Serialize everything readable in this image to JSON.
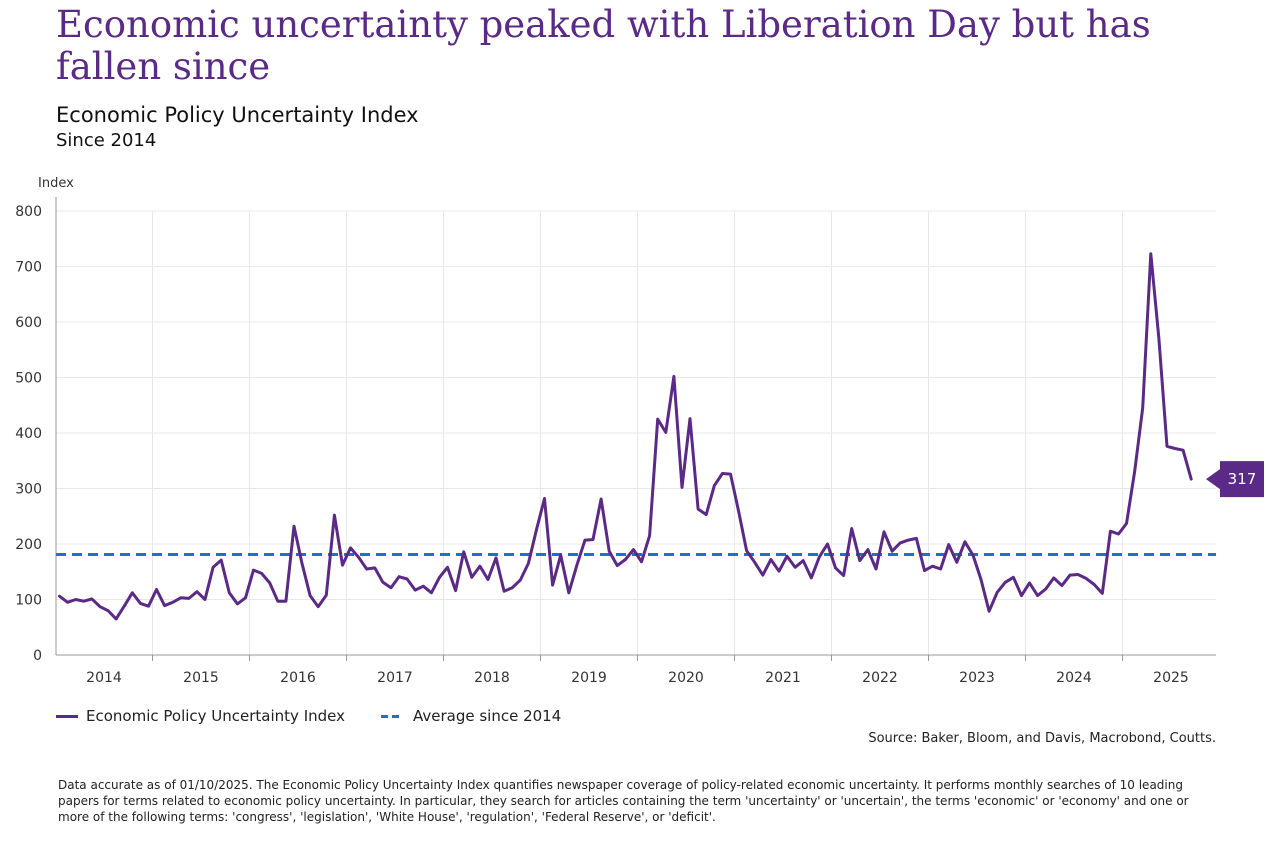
{
  "title": "Economic uncertainty peaked with Liberation Day but has fallen since",
  "subtitle": "Economic Policy Uncertainty Index",
  "subtitle2": "Since 2014",
  "source": "Source: Baker, Bloom, and Davis, Macrobond, Coutts.",
  "footnote": "Data accurate as of 01/10/2025. The Economic Policy Uncertainty Index quantifies newspaper coverage of policy-related economic uncertainty. It performs monthly searches of 10 leading papers for terms related to economic policy uncertainty. In particular, they search for articles containing the term 'uncertainty' or 'uncertain', the terms 'economic' or 'economy' and one or more of the following terms: 'congress', 'legislation', 'White House', 'regulation', 'Federal Reserve', or 'deficit'.",
  "colors": {
    "series": "#5b2a86",
    "average": "#1f6fd1",
    "title": "#5b2a86",
    "grid": "#e8e8e8"
  },
  "chart_data": {
    "type": "line",
    "ylabel": "Index",
    "ylim": [
      0,
      800
    ],
    "yticks": [
      0,
      100,
      200,
      300,
      400,
      500,
      600,
      700,
      800
    ],
    "xticks": [
      "2014",
      "2015",
      "2016",
      "2017",
      "2018",
      "2019",
      "2020",
      "2021",
      "2022",
      "2023",
      "2024",
      "2025"
    ],
    "x_start": "2014-01",
    "x_end": "2025-09",
    "grid": true,
    "legend_position": "bottom-left",
    "end_label": "317",
    "series": [
      {
        "name": "Economic Policy Uncertainty Index",
        "style": "solid",
        "values": [
          106,
          95,
          100,
          97,
          101,
          87,
          80,
          65,
          88,
          112,
          93,
          88,
          118,
          89,
          95,
          103,
          102,
          114,
          100,
          158,
          171,
          112,
          92,
          103,
          153,
          147,
          130,
          97,
          97,
          232,
          165,
          107,
          87,
          108,
          252,
          162,
          193,
          176,
          155,
          157,
          131,
          121,
          141,
          137,
          117,
          124,
          112,
          140,
          158,
          116,
          186,
          140,
          160,
          136,
          175,
          115,
          121,
          135,
          165,
          226,
          282,
          126,
          180,
          112,
          162,
          207,
          208,
          281,
          187,
          161,
          172,
          190,
          168,
          215,
          425,
          401,
          502,
          302,
          426,
          263,
          253,
          305,
          327,
          326,
          260,
          188,
          167,
          144,
          172,
          151,
          178,
          158,
          170,
          139,
          177,
          200,
          157,
          143,
          228,
          170,
          190,
          155,
          222,
          187,
          202,
          207,
          210,
          152,
          160,
          155,
          199,
          167,
          204,
          180,
          136,
          79,
          113,
          131,
          140,
          107,
          130,
          107,
          119,
          139,
          125,
          144,
          145,
          138,
          127,
          111,
          223,
          218,
          237,
          330,
          445,
          723,
          570,
          376,
          372,
          369,
          317
        ]
      },
      {
        "name": "Average since 2014",
        "style": "dashed",
        "constant": 181
      }
    ]
  }
}
